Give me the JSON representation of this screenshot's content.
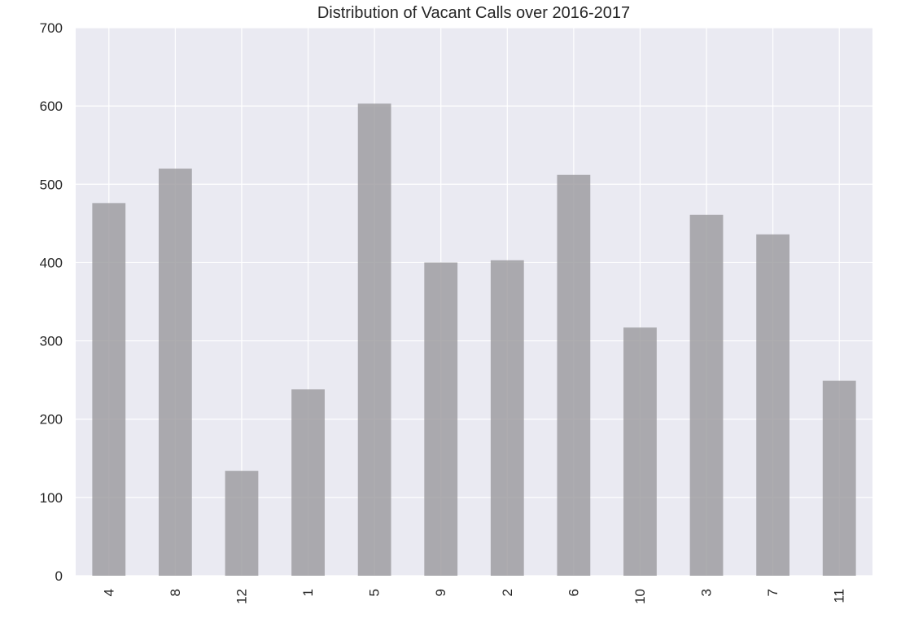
{
  "chart_data": {
    "type": "bar",
    "title": "Distribution of Vacant Calls over 2016-2017",
    "xlabel": "",
    "ylabel": "",
    "categories": [
      "4",
      "8",
      "12",
      "1",
      "5",
      "9",
      "2",
      "6",
      "10",
      "3",
      "7",
      "11"
    ],
    "values": [
      476,
      520,
      134,
      238,
      603,
      400,
      403,
      512,
      317,
      461,
      436,
      249
    ],
    "ylim": [
      0,
      700
    ],
    "yticks": [
      0,
      100,
      200,
      300,
      400,
      500,
      600,
      700
    ],
    "grid": true,
    "x_tick_rotation": "vertical",
    "colors": {
      "bar": "#9a999c",
      "plot_background": "#eaeaf2",
      "grid": "#ffffff",
      "text": "#262626"
    }
  }
}
